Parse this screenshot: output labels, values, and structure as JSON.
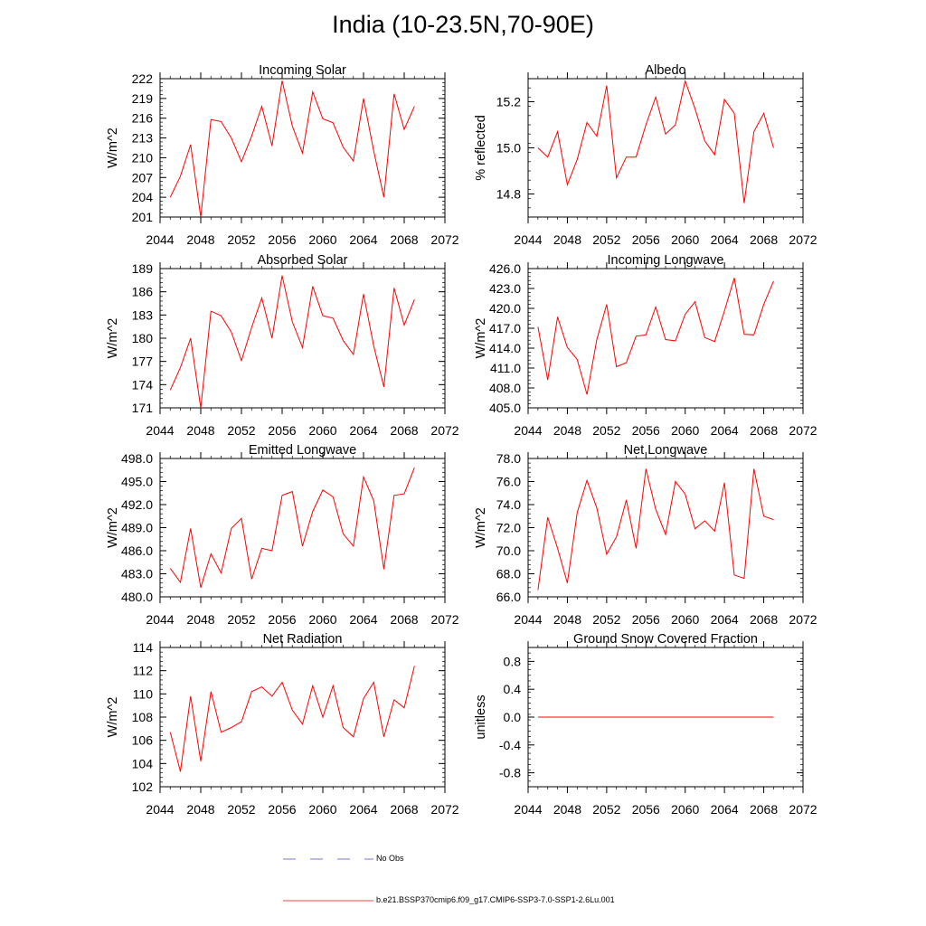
{
  "figure": {
    "title": "India (10-23.5N,70-90E)",
    "x_ticks": [
      "2044",
      "2048",
      "2052",
      "2056",
      "2060",
      "2064",
      "2068",
      "2072"
    ]
  },
  "legend": {
    "obs_label": "No Obs",
    "obs_color": "#4b4bc8",
    "model_label": "b.e21.BSSP370cmip6.f09_g17.CMIP6-SSP3-7.0-SSP1-2.6Lu.001",
    "model_color": "#ff0000"
  },
  "chart_data": [
    {
      "type": "line",
      "title": "Incoming Solar",
      "ylabel": "W/m^2",
      "xlim": [
        2044,
        2072
      ],
      "ylim": [
        201,
        222
      ],
      "yticks": [
        "201",
        "204",
        "207",
        "210",
        "213",
        "216",
        "219",
        "222"
      ],
      "x": [
        2045,
        2046,
        2047,
        2048,
        2049,
        2050,
        2051,
        2052,
        2053,
        2054,
        2055,
        2056,
        2057,
        2058,
        2059,
        2060,
        2061,
        2062,
        2063,
        2064,
        2065,
        2066,
        2067,
        2068,
        2069
      ],
      "series": [
        {
          "values": [
            204.0,
            207.2,
            212.0,
            201.0,
            215.8,
            215.5,
            213.0,
            209.4,
            213.3,
            217.8,
            211.8,
            221.7,
            214.8,
            210.7,
            220.0,
            215.9,
            215.3,
            211.6,
            209.5,
            219.0,
            211.0,
            204.0,
            219.7,
            214.3,
            217.8
          ]
        }
      ]
    },
    {
      "type": "line",
      "title": "Albedo",
      "ylabel": "% reflected",
      "xlim": [
        2044,
        2072
      ],
      "ylim": [
        14.7,
        15.3
      ],
      "yticks": [
        "14.8",
        "15.0",
        "15.2"
      ],
      "x": [
        2045,
        2046,
        2047,
        2048,
        2049,
        2050,
        2051,
        2052,
        2053,
        2054,
        2055,
        2056,
        2057,
        2058,
        2059,
        2060,
        2061,
        2062,
        2063,
        2064,
        2065,
        2066,
        2067,
        2068,
        2069
      ],
      "series": [
        {
          "values": [
            15.0,
            14.96,
            15.07,
            14.84,
            14.95,
            15.11,
            15.05,
            15.27,
            14.87,
            14.96,
            14.96,
            15.1,
            15.22,
            15.06,
            15.1,
            15.29,
            15.17,
            15.03,
            14.97,
            15.21,
            15.15,
            14.76,
            15.07,
            15.15,
            15.0
          ]
        }
      ]
    },
    {
      "type": "line",
      "title": "Absorbed Solar",
      "ylabel": "W/m^2",
      "xlim": [
        2044,
        2072
      ],
      "ylim": [
        171,
        189
      ],
      "yticks": [
        "171",
        "174",
        "177",
        "180",
        "183",
        "186",
        "189"
      ],
      "x": [
        2045,
        2046,
        2047,
        2048,
        2049,
        2050,
        2051,
        2052,
        2053,
        2054,
        2055,
        2056,
        2057,
        2058,
        2059,
        2060,
        2061,
        2062,
        2063,
        2064,
        2065,
        2066,
        2067,
        2068,
        2069
      ],
      "series": [
        {
          "values": [
            173.3,
            176.2,
            180.0,
            171.0,
            183.5,
            182.9,
            180.8,
            177.1,
            181.4,
            185.2,
            180.0,
            188.1,
            182.1,
            178.8,
            186.7,
            182.9,
            182.6,
            179.7,
            177.9,
            185.7,
            179.0,
            173.7,
            186.5,
            181.7,
            185.0
          ]
        }
      ]
    },
    {
      "type": "line",
      "title": "Incoming Longwave",
      "ylabel": "W/m^2",
      "xlim": [
        2044,
        2072
      ],
      "ylim": [
        405,
        426
      ],
      "yticks": [
        "405.0",
        "408.0",
        "411.0",
        "414.0",
        "417.0",
        "420.0",
        "423.0",
        "426.0"
      ],
      "x": [
        2045,
        2046,
        2047,
        2048,
        2049,
        2050,
        2051,
        2052,
        2053,
        2054,
        2055,
        2056,
        2057,
        2058,
        2059,
        2060,
        2061,
        2062,
        2063,
        2064,
        2065,
        2066,
        2067,
        2068,
        2069
      ],
      "series": [
        {
          "values": [
            417.2,
            409.2,
            418.7,
            414.1,
            412.3,
            407.0,
            415.3,
            420.6,
            411.2,
            411.8,
            415.8,
            416.0,
            420.2,
            415.3,
            415.1,
            419.1,
            421.0,
            415.6,
            415.0,
            419.6,
            424.6,
            416.1,
            416.0,
            420.6,
            424.1
          ]
        }
      ]
    },
    {
      "type": "line",
      "title": "Emitted Longwave",
      "ylabel": "W/m^2",
      "xlim": [
        2044,
        2072
      ],
      "ylim": [
        480,
        498
      ],
      "yticks": [
        "480.0",
        "483.0",
        "486.0",
        "489.0",
        "492.0",
        "495.0",
        "498.0"
      ],
      "x": [
        2045,
        2046,
        2047,
        2048,
        2049,
        2050,
        2051,
        2052,
        2053,
        2054,
        2055,
        2056,
        2057,
        2058,
        2059,
        2060,
        2061,
        2062,
        2063,
        2064,
        2065,
        2066,
        2067,
        2068,
        2069
      ],
      "series": [
        {
          "values": [
            483.7,
            481.9,
            488.9,
            481.2,
            485.6,
            483.1,
            488.9,
            490.2,
            482.3,
            486.3,
            486.0,
            493.2,
            493.7,
            486.6,
            491.1,
            493.9,
            493.0,
            488.2,
            486.6,
            495.6,
            492.5,
            483.6,
            493.2,
            493.4,
            496.8
          ]
        }
      ]
    },
    {
      "type": "line",
      "title": "Net Longwave",
      "ylabel": "W/m^2",
      "xlim": [
        2044,
        2072
      ],
      "ylim": [
        66,
        78
      ],
      "yticks": [
        "66.0",
        "68.0",
        "70.0",
        "72.0",
        "74.0",
        "76.0",
        "78.0"
      ],
      "x": [
        2045,
        2046,
        2047,
        2048,
        2049,
        2050,
        2051,
        2052,
        2053,
        2054,
        2055,
        2056,
        2057,
        2058,
        2059,
        2060,
        2061,
        2062,
        2063,
        2064,
        2065,
        2066,
        2067,
        2068,
        2069
      ],
      "series": [
        {
          "values": [
            66.6,
            72.9,
            70.2,
            67.2,
            73.3,
            76.1,
            73.7,
            69.7,
            71.2,
            74.4,
            70.2,
            77.1,
            73.6,
            71.4,
            76.0,
            74.9,
            71.9,
            72.6,
            71.7,
            75.9,
            67.9,
            67.6,
            77.1,
            73.0,
            72.7
          ]
        }
      ]
    },
    {
      "type": "line",
      "title": "Net Radiation",
      "ylabel": "W/m^2",
      "xlim": [
        2044,
        2072
      ],
      "ylim": [
        102,
        114
      ],
      "yticks": [
        "102",
        "104",
        "106",
        "108",
        "110",
        "112",
        "114"
      ],
      "x": [
        2045,
        2046,
        2047,
        2048,
        2049,
        2050,
        2051,
        2052,
        2053,
        2054,
        2055,
        2056,
        2057,
        2058,
        2059,
        2060,
        2061,
        2062,
        2063,
        2064,
        2065,
        2066,
        2067,
        2068,
        2069
      ],
      "series": [
        {
          "values": [
            106.7,
            103.3,
            109.8,
            104.2,
            110.2,
            106.7,
            107.1,
            107.6,
            110.2,
            110.6,
            109.8,
            111.0,
            108.6,
            107.4,
            110.7,
            108.0,
            110.7,
            107.1,
            106.3,
            109.6,
            111.0,
            106.3,
            109.5,
            108.8,
            112.4
          ]
        }
      ]
    },
    {
      "type": "line",
      "title": "Ground Snow Covered Fraction",
      "ylabel": "unitless",
      "xlim": [
        2044,
        2072
      ],
      "ylim": [
        -1,
        1
      ],
      "yticks": [
        "-0.8",
        "-0.4",
        "0.0",
        "0.4",
        "0.8"
      ],
      "x": [
        2045,
        2069
      ],
      "series": [
        {
          "values": [
            0.0,
            0.0
          ]
        }
      ]
    }
  ]
}
